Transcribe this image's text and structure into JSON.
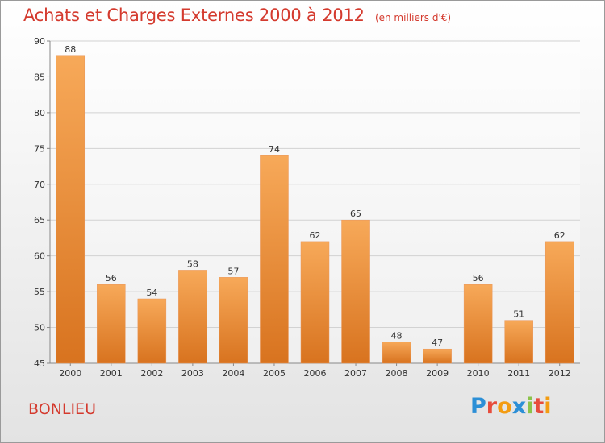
{
  "header": {
    "title": "Achats et Charges Externes 2000 à 2012",
    "subtitle": "(en milliers d'€)"
  },
  "footer": {
    "commune": "BONLIEU",
    "logo_text": "Proxiti",
    "logo_colors": [
      "#2c8fd6",
      "#e74c3c",
      "#f39c12",
      "#2c8fd6",
      "#8bc34a",
      "#e74c3c",
      "#f39c12"
    ]
  },
  "chart_data": {
    "type": "bar",
    "categories": [
      "2000",
      "2001",
      "2002",
      "2003",
      "2004",
      "2005",
      "2006",
      "2007",
      "2008",
      "2009",
      "2010",
      "2011",
      "2012"
    ],
    "values": [
      88,
      56,
      54,
      58,
      57,
      74,
      62,
      65,
      48,
      47,
      56,
      51,
      62
    ],
    "title": "Achats et Charges Externes 2000 à 2012",
    "ylim": [
      45,
      90
    ],
    "yticks": [
      45,
      50,
      55,
      60,
      65,
      70,
      75,
      80,
      85,
      90
    ],
    "grid": true,
    "bar_color_top": "#f7a959",
    "bar_color_bottom": "#d8731f"
  }
}
